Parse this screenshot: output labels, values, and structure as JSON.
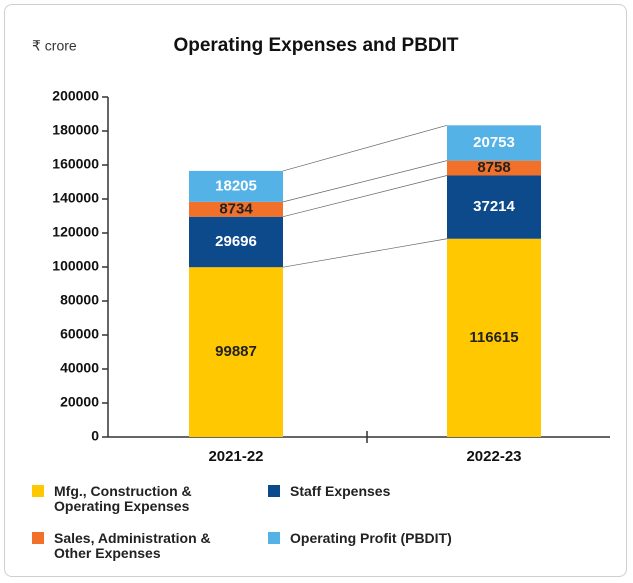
{
  "chart_data": {
    "type": "stacked_bar",
    "title": "Operating Expenses and PBDIT",
    "unit_label": "₹ crore",
    "categories": [
      "2021-22",
      "2022-23"
    ],
    "series": [
      {
        "name": "Mfg., Construction & Operating Expenses",
        "color": "#ffc800",
        "values": [
          99887,
          116615
        ]
      },
      {
        "name": "Staff Expenses",
        "color": "#0d4a8c",
        "values": [
          29696,
          37214
        ]
      },
      {
        "name": "Sales, Administration & Other Expenses",
        "color": "#f2712a",
        "values": [
          8734,
          8758
        ]
      },
      {
        "name": "Operating Profit (PBDIT)",
        "color": "#55b2e6",
        "values": [
          18205,
          20753
        ]
      }
    ],
    "ylim": [
      0,
      200000
    ],
    "yticks": [
      0,
      20000,
      40000,
      60000,
      80000,
      100000,
      120000,
      140000,
      160000,
      180000,
      200000
    ]
  }
}
